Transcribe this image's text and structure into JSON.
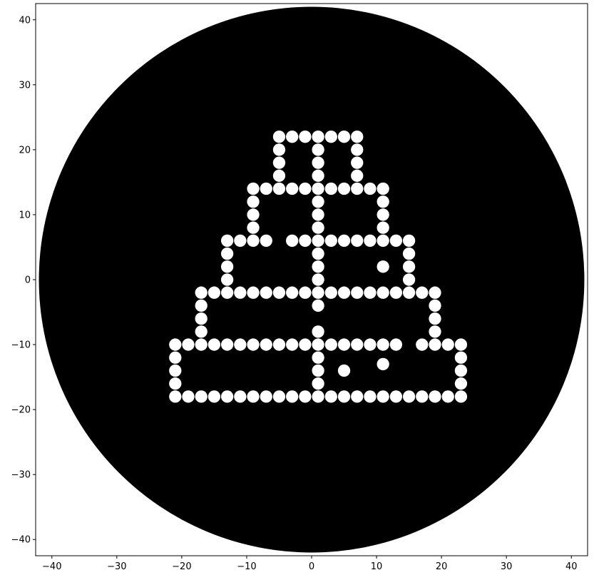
{
  "chart_data": {
    "type": "scatter",
    "title": "",
    "xlabel": "",
    "ylabel": "",
    "xlim": [
      -42.5,
      42.5
    ],
    "ylim": [
      -42.5,
      42.5
    ],
    "xticks": [
      -40,
      -30,
      -20,
      -10,
      0,
      10,
      20,
      30,
      40
    ],
    "yticks": [
      -40,
      -30,
      -20,
      -10,
      0,
      10,
      20,
      30,
      40
    ],
    "xtick_labels": [
      "−40",
      "−30",
      "−20",
      "−10",
      "0",
      "10",
      "20",
      "30",
      "40"
    ],
    "ytick_labels": [
      "−40",
      "−30",
      "−20",
      "−10",
      "0",
      "10",
      "20",
      "30",
      "40"
    ],
    "grid": false,
    "background_disk": {
      "center": [
        0,
        0
      ],
      "radius": 42,
      "color": "#000000"
    },
    "marker_color": "#ffffff",
    "points": [
      [
        -5,
        22
      ],
      [
        -3,
        22
      ],
      [
        -1,
        22
      ],
      [
        1,
        22
      ],
      [
        3,
        22
      ],
      [
        5,
        22
      ],
      [
        7,
        22
      ],
      [
        -5,
        20
      ],
      [
        1,
        20
      ],
      [
        7,
        20
      ],
      [
        -5,
        18
      ],
      [
        1,
        18
      ],
      [
        7,
        18
      ],
      [
        -5,
        16
      ],
      [
        1,
        16
      ],
      [
        7,
        16
      ],
      [
        -9,
        14
      ],
      [
        -7,
        14
      ],
      [
        -5,
        14
      ],
      [
        -3,
        14
      ],
      [
        -1,
        14
      ],
      [
        1,
        14
      ],
      [
        3,
        14
      ],
      [
        5,
        14
      ],
      [
        7,
        14
      ],
      [
        9,
        14
      ],
      [
        11,
        14
      ],
      [
        -9,
        12
      ],
      [
        1,
        12
      ],
      [
        11,
        12
      ],
      [
        -9,
        10
      ],
      [
        1,
        10
      ],
      [
        11,
        10
      ],
      [
        -9,
        8
      ],
      [
        1,
        8
      ],
      [
        11,
        8
      ],
      [
        -13,
        6
      ],
      [
        -11,
        6
      ],
      [
        -9,
        6
      ],
      [
        -7,
        6
      ],
      [
        -3,
        6
      ],
      [
        -1,
        6
      ],
      [
        1,
        6
      ],
      [
        3,
        6
      ],
      [
        5,
        6
      ],
      [
        7,
        6
      ],
      [
        9,
        6
      ],
      [
        11,
        6
      ],
      [
        13,
        6
      ],
      [
        15,
        6
      ],
      [
        -13,
        4
      ],
      [
        1,
        4
      ],
      [
        15,
        4
      ],
      [
        -13,
        2
      ],
      [
        1,
        2
      ],
      [
        11,
        2
      ],
      [
        15,
        2
      ],
      [
        -13,
        0
      ],
      [
        1,
        0
      ],
      [
        15,
        0
      ],
      [
        -17,
        -2
      ],
      [
        -15,
        -2
      ],
      [
        -13,
        -2
      ],
      [
        -11,
        -2
      ],
      [
        -9,
        -2
      ],
      [
        -7,
        -2
      ],
      [
        -5,
        -2
      ],
      [
        -3,
        -2
      ],
      [
        -1,
        -2
      ],
      [
        1,
        -2
      ],
      [
        3,
        -2
      ],
      [
        5,
        -2
      ],
      [
        7,
        -2
      ],
      [
        9,
        -2
      ],
      [
        11,
        -2
      ],
      [
        13,
        -2
      ],
      [
        15,
        -2
      ],
      [
        17,
        -2
      ],
      [
        19,
        -2
      ],
      [
        -17,
        -4
      ],
      [
        1,
        -4
      ],
      [
        19,
        -4
      ],
      [
        -17,
        -6
      ],
      [
        19,
        -6
      ],
      [
        -17,
        -8
      ],
      [
        1,
        -8
      ],
      [
        19,
        -8
      ],
      [
        -21,
        -10
      ],
      [
        -19,
        -10
      ],
      [
        -17,
        -10
      ],
      [
        -15,
        -10
      ],
      [
        -13,
        -10
      ],
      [
        -11,
        -10
      ],
      [
        -9,
        -10
      ],
      [
        -7,
        -10
      ],
      [
        -5,
        -10
      ],
      [
        -3,
        -10
      ],
      [
        -1,
        -10
      ],
      [
        1,
        -10
      ],
      [
        3,
        -10
      ],
      [
        5,
        -10
      ],
      [
        7,
        -10
      ],
      [
        9,
        -10
      ],
      [
        11,
        -10
      ],
      [
        13,
        -10
      ],
      [
        17,
        -10
      ],
      [
        19,
        -10
      ],
      [
        21,
        -10
      ],
      [
        23,
        -10
      ],
      [
        -21,
        -12
      ],
      [
        1,
        -12
      ],
      [
        23,
        -12
      ],
      [
        11,
        -13
      ],
      [
        -21,
        -14
      ],
      [
        1,
        -14
      ],
      [
        5,
        -14
      ],
      [
        23,
        -14
      ],
      [
        -21,
        -16
      ],
      [
        1,
        -16
      ],
      [
        23,
        -16
      ],
      [
        -21,
        -18
      ],
      [
        -19,
        -18
      ],
      [
        -17,
        -18
      ],
      [
        -15,
        -18
      ],
      [
        -13,
        -18
      ],
      [
        -11,
        -18
      ],
      [
        -9,
        -18
      ],
      [
        -7,
        -18
      ],
      [
        -5,
        -18
      ],
      [
        -3,
        -18
      ],
      [
        -1,
        -18
      ],
      [
        1,
        -18
      ],
      [
        3,
        -18
      ],
      [
        5,
        -18
      ],
      [
        7,
        -18
      ],
      [
        9,
        -18
      ],
      [
        11,
        -18
      ],
      [
        13,
        -18
      ],
      [
        15,
        -18
      ],
      [
        17,
        -18
      ],
      [
        19,
        -18
      ],
      [
        21,
        -18
      ],
      [
        23,
        -18
      ]
    ]
  }
}
